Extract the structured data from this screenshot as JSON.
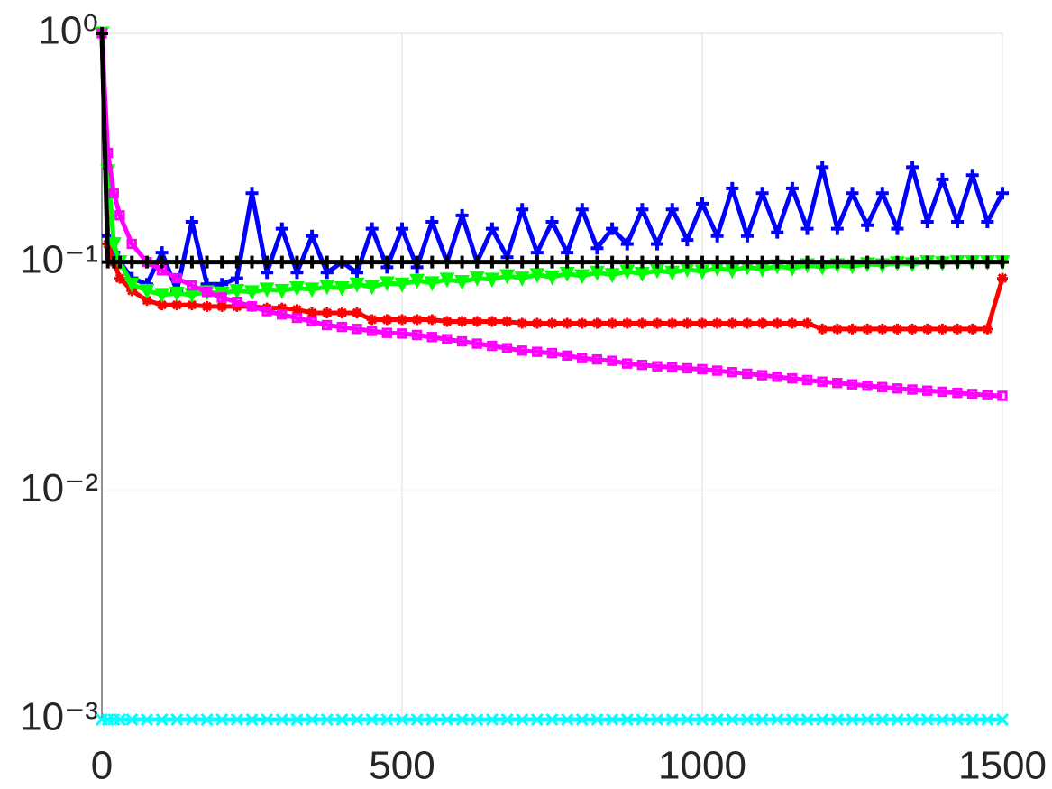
{
  "chart_data": {
    "type": "line",
    "log_y": true,
    "grid": true,
    "xlim": [
      0,
      1500
    ],
    "ylim": [
      0.001,
      1
    ],
    "xticks": [
      0,
      500,
      1000,
      1500
    ],
    "yticks": [
      {
        "value": 0.001,
        "label": "10⁻³"
      },
      {
        "value": 0.01,
        "label": "10⁻²"
      },
      {
        "value": 0.1,
        "label": "10⁻¹"
      },
      {
        "value": 1,
        "label": "10⁰"
      }
    ],
    "x": [
      0,
      10,
      20,
      30,
      50,
      75,
      100,
      125,
      150,
      175,
      200,
      225,
      250,
      275,
      300,
      325,
      350,
      375,
      400,
      425,
      450,
      475,
      500,
      525,
      550,
      575,
      600,
      625,
      650,
      675,
      700,
      725,
      750,
      775,
      800,
      825,
      850,
      875,
      900,
      925,
      950,
      975,
      1000,
      1025,
      1050,
      1075,
      1100,
      1125,
      1150,
      1175,
      1200,
      1225,
      1250,
      1275,
      1300,
      1325,
      1350,
      1375,
      1400,
      1425,
      1450,
      1475,
      1500
    ],
    "series": [
      {
        "color": "#0000ff",
        "marker": "plus",
        "values": [
          1,
          0.13,
          0.11,
          0.1,
          0.085,
          0.08,
          0.11,
          0.075,
          0.15,
          0.08,
          0.08,
          0.085,
          0.2,
          0.09,
          0.14,
          0.09,
          0.13,
          0.09,
          0.1,
          0.09,
          0.14,
          0.095,
          0.14,
          0.095,
          0.15,
          0.1,
          0.16,
          0.1,
          0.14,
          0.105,
          0.17,
          0.11,
          0.15,
          0.11,
          0.17,
          0.115,
          0.14,
          0.12,
          0.17,
          0.12,
          0.17,
          0.125,
          0.18,
          0.13,
          0.21,
          0.13,
          0.2,
          0.135,
          0.21,
          0.14,
          0.26,
          0.14,
          0.2,
          0.145,
          0.2,
          0.14,
          0.26,
          0.15,
          0.23,
          0.15,
          0.24,
          0.15,
          0.2
        ]
      },
      {
        "color": "#ff0000",
        "marker": "star",
        "values": [
          1,
          0.12,
          0.1,
          0.085,
          0.075,
          0.068,
          0.065,
          0.065,
          0.065,
          0.064,
          0.064,
          0.064,
          0.064,
          0.063,
          0.063,
          0.062,
          0.06,
          0.06,
          0.06,
          0.06,
          0.056,
          0.056,
          0.056,
          0.056,
          0.056,
          0.055,
          0.055,
          0.055,
          0.055,
          0.055,
          0.054,
          0.054,
          0.054,
          0.054,
          0.054,
          0.054,
          0.054,
          0.054,
          0.054,
          0.054,
          0.054,
          0.054,
          0.054,
          0.054,
          0.054,
          0.054,
          0.054,
          0.054,
          0.054,
          0.054,
          0.051,
          0.051,
          0.051,
          0.051,
          0.051,
          0.051,
          0.051,
          0.051,
          0.051,
          0.051,
          0.051,
          0.051,
          0.085
        ]
      },
      {
        "color": "#00ff00",
        "marker": "triangle",
        "values": [
          1,
          0.25,
          0.12,
          0.1,
          0.08,
          0.075,
          0.072,
          0.073,
          0.072,
          0.074,
          0.073,
          0.075,
          0.074,
          0.076,
          0.075,
          0.077,
          0.076,
          0.078,
          0.077,
          0.08,
          0.078,
          0.081,
          0.08,
          0.083,
          0.081,
          0.084,
          0.082,
          0.085,
          0.084,
          0.087,
          0.085,
          0.088,
          0.086,
          0.089,
          0.087,
          0.09,
          0.088,
          0.091,
          0.089,
          0.092,
          0.09,
          0.093,
          0.091,
          0.094,
          0.092,
          0.095,
          0.093,
          0.096,
          0.094,
          0.097,
          0.095,
          0.097,
          0.096,
          0.098,
          0.097,
          0.099,
          0.098,
          0.1,
          0.099,
          0.1,
          0.1,
          0.1,
          0.1
        ]
      },
      {
        "color": "#ff00ff",
        "marker": "square",
        "values": [
          1,
          0.3,
          0.2,
          0.16,
          0.12,
          0.1,
          0.092,
          0.085,
          0.079,
          0.074,
          0.07,
          0.067,
          0.064,
          0.061,
          0.059,
          0.057,
          0.055,
          0.053,
          0.052,
          0.051,
          0.05,
          0.049,
          0.0487,
          0.048,
          0.047,
          0.046,
          0.045,
          0.044,
          0.043,
          0.042,
          0.041,
          0.0405,
          0.04,
          0.039,
          0.038,
          0.0375,
          0.037,
          0.036,
          0.0355,
          0.035,
          0.0347,
          0.0343,
          0.034,
          0.0335,
          0.033,
          0.0325,
          0.032,
          0.0315,
          0.031,
          0.0305,
          0.03,
          0.0296,
          0.0292,
          0.0288,
          0.0284,
          0.028,
          0.0277,
          0.0274,
          0.0271,
          0.0268,
          0.0265,
          0.0262,
          0.026
        ]
      },
      {
        "color": "#000000",
        "marker": "plus",
        "values": [
          1,
          0.1,
          0.1,
          0.1,
          0.1,
          0.1,
          0.1,
          0.1,
          0.1,
          0.1,
          0.1,
          0.1,
          0.1,
          0.1,
          0.1,
          0.1,
          0.1,
          0.1,
          0.1,
          0.1,
          0.1,
          0.1,
          0.1,
          0.1,
          0.1,
          0.1,
          0.1,
          0.1,
          0.1,
          0.1,
          0.1,
          0.1,
          0.1,
          0.1,
          0.1,
          0.1,
          0.1,
          0.1,
          0.1,
          0.1,
          0.1,
          0.1,
          0.1,
          0.1,
          0.1,
          0.1,
          0.1,
          0.1,
          0.1,
          0.1,
          0.1,
          0.1,
          0.1,
          0.1,
          0.1,
          0.1,
          0.1,
          0.1,
          0.1,
          0.1,
          0.1,
          0.1,
          0.1
        ]
      },
      {
        "color": "#00ffff",
        "marker": "cross",
        "values": [
          0.001,
          0.001,
          0.001,
          0.001,
          0.001,
          0.001,
          0.001,
          0.001,
          0.001,
          0.001,
          0.001,
          0.001,
          0.001,
          0.001,
          0.001,
          0.001,
          0.001,
          0.001,
          0.001,
          0.001,
          0.001,
          0.001,
          0.001,
          0.001,
          0.001,
          0.001,
          0.001,
          0.001,
          0.001,
          0.001,
          0.001,
          0.001,
          0.001,
          0.001,
          0.001,
          0.001,
          0.001,
          0.001,
          0.001,
          0.001,
          0.001,
          0.001,
          0.001,
          0.001,
          0.001,
          0.001,
          0.001,
          0.001,
          0.001,
          0.001,
          0.001,
          0.001,
          0.001,
          0.001,
          0.001,
          0.001,
          0.001,
          0.001,
          0.001,
          0.001,
          0.001,
          0.001,
          0.001
        ]
      }
    ]
  }
}
